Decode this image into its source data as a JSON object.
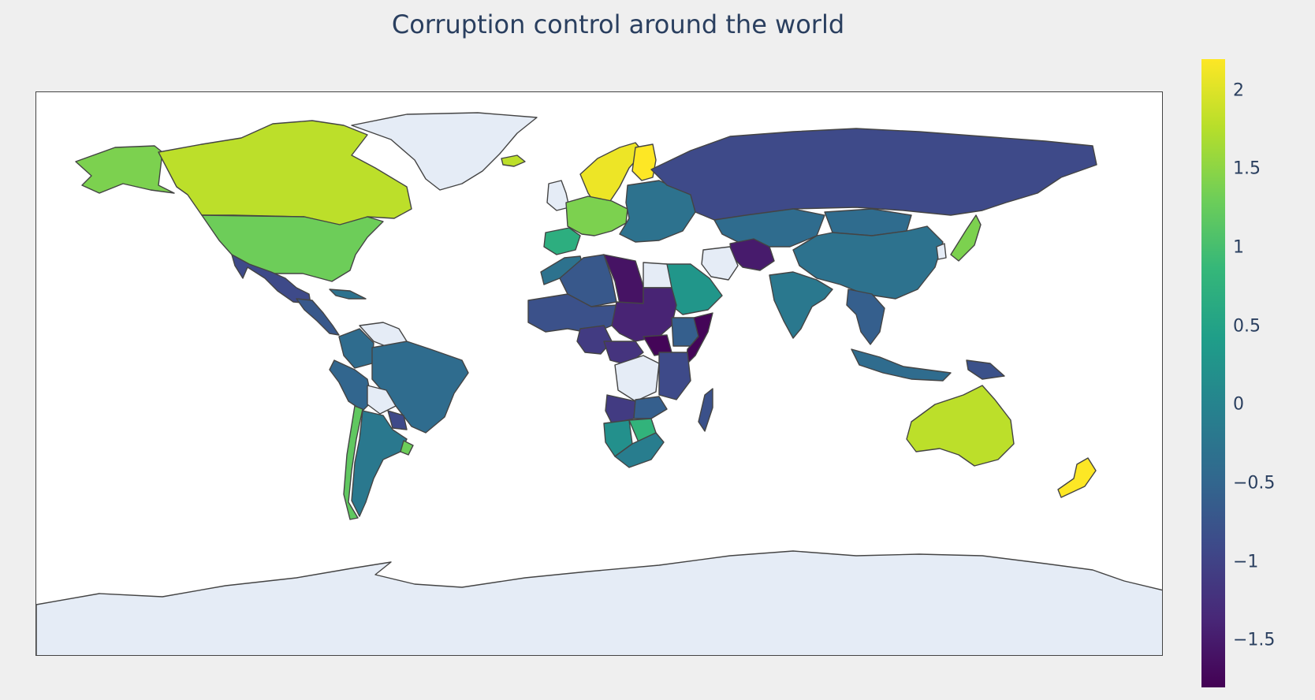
{
  "title": "Corruption control around the world",
  "colorscale": {
    "name": "Viridis",
    "stops": [
      "#440154",
      "#482878",
      "#3e4989",
      "#31688e",
      "#26828e",
      "#1f9e89",
      "#35b779",
      "#6ece58",
      "#b5de2b",
      "#fde725"
    ],
    "min": -1.8,
    "max": 2.2,
    "ticks": [
      "2",
      "1.5",
      "1",
      "0.5",
      "0",
      "−0.5",
      "−1",
      "−1.5"
    ],
    "tick_values": [
      2,
      1.5,
      1,
      0.5,
      0,
      -0.5,
      -1,
      -1.5
    ]
  },
  "colors": {
    "no_data": "#e5ecf6",
    "border": "#444444",
    "ocean": "#ffffff",
    "paper": "#efefef"
  },
  "regions": [
    {
      "name": "Greenland",
      "value": null
    },
    {
      "name": "Alaska",
      "value": 1.4
    },
    {
      "name": "Canada",
      "value": 1.8
    },
    {
      "name": "United States",
      "value": 1.3
    },
    {
      "name": "Mexico",
      "value": -0.9
    },
    {
      "name": "Central America",
      "value": -0.7
    },
    {
      "name": "Cuba",
      "value": -0.3
    },
    {
      "name": "Venezuela",
      "value": null
    },
    {
      "name": "Colombia",
      "value": -0.4
    },
    {
      "name": "Peru",
      "value": -0.5
    },
    {
      "name": "Brazil",
      "value": -0.4
    },
    {
      "name": "Bolivia",
      "value": null
    },
    {
      "name": "Paraguay",
      "value": -0.9
    },
    {
      "name": "Chile",
      "value": 1.2
    },
    {
      "name": "Argentina",
      "value": -0.2
    },
    {
      "name": "Uruguay",
      "value": 1.3
    },
    {
      "name": "Iceland",
      "value": 1.8
    },
    {
      "name": "Norway and Sweden",
      "value": 2.1
    },
    {
      "name": "Finland",
      "value": 2.2
    },
    {
      "name": "United Kingdom",
      "value": null
    },
    {
      "name": "Western Europe",
      "value": 1.4
    },
    {
      "name": "Spain",
      "value": 0.7
    },
    {
      "name": "Eastern Europe",
      "value": -0.3
    },
    {
      "name": "Russia",
      "value": -0.9
    },
    {
      "name": "Kazakhstan",
      "value": -0.4
    },
    {
      "name": "Mongolia",
      "value": -0.4
    },
    {
      "name": "China",
      "value": -0.3
    },
    {
      "name": "Japan",
      "value": 1.4
    },
    {
      "name": "Korea",
      "value": null
    },
    {
      "name": "India",
      "value": -0.2
    },
    {
      "name": "Afghanistan",
      "value": -1.5
    },
    {
      "name": "Iran",
      "value": null
    },
    {
      "name": "Saudi Arabia",
      "value": 0.3
    },
    {
      "name": "Southeast Asia",
      "value": -0.6
    },
    {
      "name": "Indonesia",
      "value": -0.4
    },
    {
      "name": "Papua New Guinea",
      "value": -0.8
    },
    {
      "name": "Australia",
      "value": 1.8
    },
    {
      "name": "New Zealand",
      "value": 2.2
    },
    {
      "name": "Morocco",
      "value": -0.3
    },
    {
      "name": "Algeria",
      "value": -0.7
    },
    {
      "name": "Libya",
      "value": -1.6
    },
    {
      "name": "Egypt",
      "value": null
    },
    {
      "name": "Sahel",
      "value": -0.8
    },
    {
      "name": "Chad and Sudan",
      "value": -1.4
    },
    {
      "name": "South Sudan",
      "value": -1.75
    },
    {
      "name": "Ethiopia",
      "value": -0.6
    },
    {
      "name": "Somalia",
      "value": -1.75
    },
    {
      "name": "Nigeria",
      "value": -1.1
    },
    {
      "name": "Central Africa",
      "value": -1.2
    },
    {
      "name": "DR Congo",
      "value": null
    },
    {
      "name": "East Africa",
      "value": -0.9
    },
    {
      "name": "Angola",
      "value": -1.1
    },
    {
      "name": "Zambia",
      "value": -0.6
    },
    {
      "name": "Namibia",
      "value": 0.2
    },
    {
      "name": "Botswana",
      "value": 0.8
    },
    {
      "name": "South Africa",
      "value": -0.1
    },
    {
      "name": "Madagascar",
      "value": -0.8
    },
    {
      "name": "Antarctica",
      "value": null
    }
  ]
}
